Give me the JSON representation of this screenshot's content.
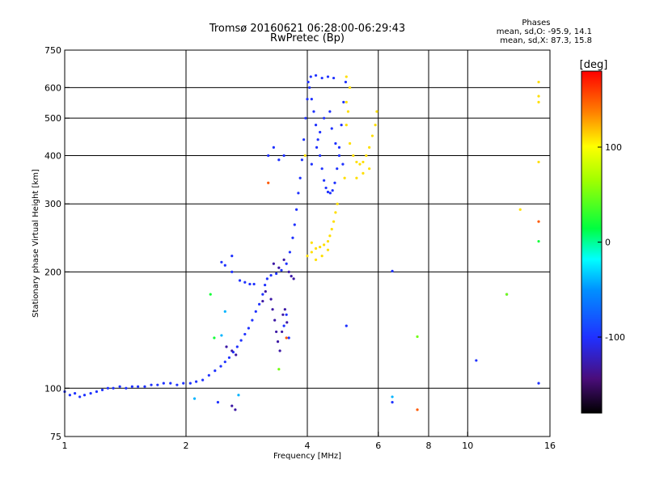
{
  "title": {
    "line1": "Tromsø 20160621 06:28:00-06:29:43",
    "line2": "RwPretec (Bp)"
  },
  "stats": {
    "heading": "Phases",
    "line_o": "mean, sd,O: -95.9, 14.1",
    "line_x": "mean, sd,X:  87.3, 15.8"
  },
  "colorbar": {
    "label": "[deg]",
    "ticks": [
      {
        "value": 100,
        "text": "100"
      },
      {
        "value": 0,
        "text": "0"
      },
      {
        "value": -100,
        "text": "-100"
      }
    ],
    "range": [
      -180,
      180
    ]
  },
  "colors": {
    "o_mode": "#1f3fff",
    "o_mode_dark": "#4a1aa8",
    "x_mode": "#e6e600",
    "axes": "#000000"
  },
  "chart_data": {
    "type": "scatter",
    "x_scale": "log",
    "y_scale": "log",
    "xlim": [
      1,
      16
    ],
    "ylim": [
      75,
      750
    ],
    "xlabel": "Frequency [MHz]",
    "ylabel": "Stationary phase Virtual Height [km]",
    "x_ticks": [
      {
        "value": 1,
        "text": "1"
      },
      {
        "value": 2,
        "text": "2"
      },
      {
        "value": 4,
        "text": "4"
      },
      {
        "value": 6,
        "text": "6"
      },
      {
        "value": 8,
        "text": "8"
      },
      {
        "value": 10,
        "text": "10"
      },
      {
        "value": 16,
        "text": "16"
      }
    ],
    "y_ticks": [
      {
        "value": 75,
        "text": "75"
      },
      {
        "value": 100,
        "text": "100"
      },
      {
        "value": 200,
        "text": "200"
      },
      {
        "value": 300,
        "text": "300"
      },
      {
        "value": 400,
        "text": "400"
      },
      {
        "value": 500,
        "text": "500"
      },
      {
        "value": 600,
        "text": "600"
      },
      {
        "value": 750,
        "text": "750"
      }
    ],
    "grid_x": [
      2,
      4,
      6,
      8,
      10
    ],
    "grid_y": [
      100,
      200,
      300,
      400,
      500,
      600
    ],
    "series": [
      {
        "phase": -100,
        "points": [
          [
            1.0,
            98
          ],
          [
            1.03,
            96
          ],
          [
            1.06,
            97
          ],
          [
            1.09,
            95
          ],
          [
            1.12,
            96
          ],
          [
            1.16,
            97
          ],
          [
            1.2,
            98
          ],
          [
            1.24,
            99
          ],
          [
            1.28,
            100
          ],
          [
            1.32,
            100
          ],
          [
            1.37,
            101
          ],
          [
            1.42,
            100
          ],
          [
            1.47,
            101
          ],
          [
            1.52,
            101
          ],
          [
            1.58,
            101
          ],
          [
            1.64,
            102
          ],
          [
            1.7,
            102
          ],
          [
            1.76,
            103
          ],
          [
            1.83,
            103
          ],
          [
            1.9,
            102
          ],
          [
            1.97,
            103
          ],
          [
            2.05,
            103
          ],
          [
            2.12,
            104
          ],
          [
            2.2,
            105
          ],
          [
            2.28,
            108
          ],
          [
            2.36,
            111
          ],
          [
            2.44,
            114
          ],
          [
            2.5,
            117
          ],
          [
            2.56,
            120
          ],
          [
            2.62,
            124
          ],
          [
            2.68,
            128
          ],
          [
            2.74,
            133
          ],
          [
            2.8,
            138
          ],
          [
            2.86,
            143
          ],
          [
            2.92,
            150
          ],
          [
            2.98,
            158
          ],
          [
            3.04,
            165
          ],
          [
            3.1,
            175
          ],
          [
            3.14,
            185
          ],
          [
            3.18,
            192
          ],
          [
            3.25,
            196
          ],
          [
            3.35,
            198
          ],
          [
            3.45,
            202
          ],
          [
            3.55,
            210
          ],
          [
            3.62,
            225
          ],
          [
            3.68,
            245
          ],
          [
            3.72,
            265
          ],
          [
            3.76,
            290
          ],
          [
            3.8,
            320
          ],
          [
            3.84,
            350
          ],
          [
            3.88,
            390
          ],
          [
            3.92,
            440
          ],
          [
            3.96,
            500
          ],
          [
            4.0,
            560
          ],
          [
            4.02,
            620
          ],
          [
            4.05,
            600
          ],
          [
            4.1,
            560
          ],
          [
            4.15,
            520
          ],
          [
            4.2,
            480
          ],
          [
            4.25,
            440
          ],
          [
            4.3,
            400
          ],
          [
            4.35,
            370
          ],
          [
            4.4,
            345
          ],
          [
            4.45,
            330
          ],
          [
            4.5,
            322
          ],
          [
            4.56,
            320
          ],
          [
            4.62,
            325
          ],
          [
            4.68,
            340
          ],
          [
            4.74,
            370
          ],
          [
            4.8,
            420
          ],
          [
            4.86,
            480
          ],
          [
            4.92,
            550
          ],
          [
            4.98,
            620
          ],
          [
            4.08,
            640
          ],
          [
            4.2,
            645
          ],
          [
            4.35,
            635
          ],
          [
            4.5,
            640
          ],
          [
            4.65,
            635
          ],
          [
            4.1,
            380
          ],
          [
            4.22,
            420
          ],
          [
            4.3,
            460
          ],
          [
            4.4,
            500
          ],
          [
            4.55,
            520
          ],
          [
            4.6,
            470
          ],
          [
            4.7,
            430
          ],
          [
            4.8,
            400
          ],
          [
            4.9,
            380
          ],
          [
            3.2,
            400
          ],
          [
            3.3,
            420
          ],
          [
            3.4,
            390
          ],
          [
            3.5,
            400
          ],
          [
            2.72,
            190
          ],
          [
            2.8,
            188
          ],
          [
            2.88,
            186
          ],
          [
            2.95,
            186
          ],
          [
            2.6,
            200
          ],
          [
            2.5,
            208
          ],
          [
            2.45,
            212
          ],
          [
            2.6,
            220
          ],
          [
            2.4,
            92
          ],
          [
            6.5,
            92
          ],
          [
            6.5,
            201
          ],
          [
            5.0,
            145
          ],
          [
            10.5,
            118
          ],
          [
            12.5,
            175
          ],
          [
            15.0,
            103
          ],
          [
            3.5,
            145
          ],
          [
            3.6,
            135
          ],
          [
            3.55,
            155
          ]
        ]
      },
      {
        "phase": -130,
        "points": [
          [
            3.25,
            170
          ],
          [
            3.28,
            160
          ],
          [
            3.32,
            150
          ],
          [
            3.35,
            140
          ],
          [
            3.38,
            132
          ],
          [
            3.42,
            125
          ],
          [
            3.46,
            140
          ],
          [
            3.48,
            155
          ],
          [
            3.52,
            160
          ],
          [
            3.56,
            148
          ],
          [
            3.6,
            200
          ],
          [
            3.65,
            195
          ],
          [
            3.7,
            192
          ],
          [
            3.3,
            210
          ],
          [
            3.4,
            205
          ],
          [
            3.5,
            215
          ],
          [
            3.1,
            168
          ],
          [
            3.15,
            178
          ],
          [
            2.52,
            128
          ],
          [
            2.6,
            125
          ],
          [
            2.66,
            122
          ],
          [
            2.6,
            90
          ],
          [
            2.65,
            88
          ]
        ]
      },
      {
        "phase": 110,
        "points": [
          [
            4.0,
            220
          ],
          [
            4.1,
            225
          ],
          [
            4.2,
            230
          ],
          [
            4.3,
            232
          ],
          [
            4.4,
            235
          ],
          [
            4.5,
            240
          ],
          [
            4.55,
            248
          ],
          [
            4.6,
            258
          ],
          [
            4.65,
            270
          ],
          [
            4.7,
            285
          ],
          [
            4.75,
            300
          ],
          [
            4.2,
            215
          ],
          [
            4.35,
            220
          ],
          [
            4.5,
            228
          ],
          [
            4.1,
            238
          ],
          [
            5.0,
            480
          ],
          [
            5.1,
            430
          ],
          [
            5.2,
            400
          ],
          [
            5.3,
            385
          ],
          [
            5.4,
            380
          ],
          [
            5.5,
            385
          ],
          [
            5.6,
            400
          ],
          [
            5.7,
            420
          ],
          [
            5.8,
            450
          ],
          [
            5.9,
            480
          ],
          [
            5.95,
            520
          ],
          [
            5.3,
            350
          ],
          [
            5.5,
            360
          ],
          [
            5.7,
            370
          ],
          [
            5.0,
            550
          ],
          [
            5.05,
            520
          ],
          [
            5.1,
            600
          ],
          [
            5.0,
            640
          ],
          [
            15.0,
            620
          ],
          [
            15.0,
            570
          ],
          [
            15.0,
            550
          ],
          [
            15.0,
            385
          ],
          [
            13.5,
            290
          ],
          [
            3.95,
            400
          ],
          [
            4.95,
            350
          ]
        ]
      },
      {
        "phase": 150,
        "points": [
          [
            3.2,
            340
          ],
          [
            7.5,
            88
          ],
          [
            3.55,
            135
          ],
          [
            15.0,
            270
          ]
        ]
      },
      {
        "phase": 50,
        "points": [
          [
            3.4,
            112
          ],
          [
            7.5,
            136
          ],
          [
            12.5,
            175
          ]
        ]
      },
      {
        "phase": 20,
        "points": [
          [
            2.3,
            175
          ],
          [
            2.35,
            135
          ],
          [
            15.0,
            240
          ]
        ]
      },
      {
        "phase": -40,
        "points": [
          [
            2.1,
            94
          ],
          [
            2.7,
            96
          ],
          [
            6.5,
            95
          ],
          [
            2.45,
            137
          ],
          [
            2.5,
            158
          ]
        ]
      }
    ]
  }
}
